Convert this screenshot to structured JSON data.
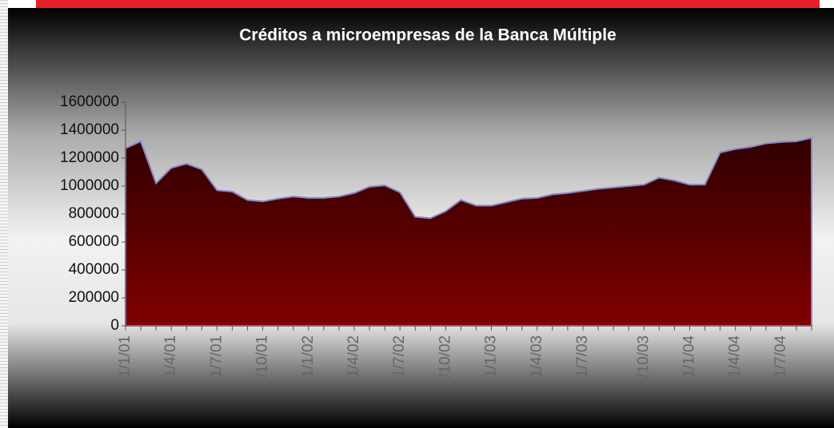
{
  "chart_data": {
    "type": "area",
    "title": "Créditos a microempresas de la Banca Múltiple",
    "categories": [
      "1/1/01",
      null,
      null,
      "1/4/01",
      null,
      null,
      "1/7/01",
      null,
      null,
      "1/10/01",
      null,
      null,
      "1/1/02",
      null,
      null,
      "1/4/02",
      null,
      null,
      "1/7/02",
      null,
      null,
      "1/10/02",
      null,
      null,
      "1/1/03",
      null,
      null,
      "1/4/03",
      null,
      null,
      "1/7/03",
      null,
      null,
      null,
      "1/10/03",
      null,
      null,
      "1/1/04",
      null,
      null,
      "1/4/04",
      null,
      null,
      "1/7/04",
      null,
      null
    ],
    "values": [
      1270000,
      1320000,
      1020000,
      1130000,
      1160000,
      1120000,
      970000,
      960000,
      900000,
      890000,
      910000,
      925000,
      915000,
      915000,
      925000,
      950000,
      995000,
      1005000,
      955000,
      780000,
      770000,
      820000,
      900000,
      860000,
      860000,
      885000,
      910000,
      915000,
      940000,
      950000,
      965000,
      980000,
      990000,
      1000000,
      1010000,
      1060000,
      1040000,
      1010000,
      1010000,
      1240000,
      1265000,
      1280000,
      1305000,
      1315000,
      1320000,
      1345000
    ],
    "color": "#7a0000",
    "ylim": [
      0,
      1600000
    ],
    "yticks": [
      0,
      200000,
      400000,
      600000,
      800000,
      1000000,
      1200000,
      1400000,
      1600000
    ]
  }
}
